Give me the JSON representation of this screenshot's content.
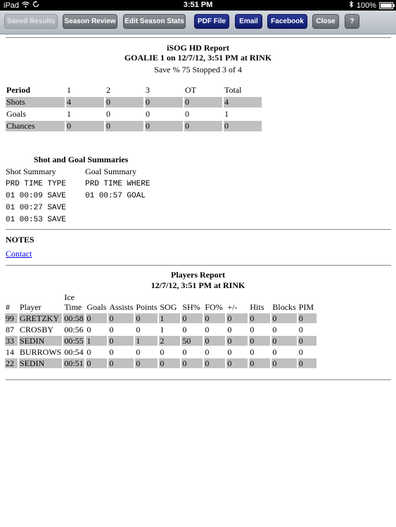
{
  "status_bar": {
    "device": "iPad",
    "time": "3:51 PM",
    "battery": "100%"
  },
  "toolbar": {
    "saved_results": "Saved Results",
    "season_review": "Season Review",
    "edit_season_stats": "Edit Season Stats",
    "pdf_file": "PDF File",
    "email": "Email",
    "facebook": "Facebook",
    "close": "Close",
    "help": "?"
  },
  "report": {
    "title": "iSOG HD Report",
    "subtitle": "GOALIE 1 on 12/7/12, 3:51 PM at RINK",
    "save_line": "Save % 75 Stopped 3 of 4",
    "period_table": {
      "headers": [
        "Period",
        "1",
        "2",
        "3",
        "OT",
        "Total"
      ],
      "rows": [
        [
          "Shots",
          "4",
          "0",
          "0",
          "0",
          "4"
        ],
        [
          "Goals",
          "1",
          "0",
          "0",
          "0",
          "1"
        ],
        [
          "Chances",
          "0",
          "0",
          "0",
          "0",
          "0"
        ]
      ]
    },
    "summaries_title": "Shot and Goal Summaries",
    "shot_summary": {
      "label": "Shot Summary",
      "header": "PRD TIME TYPE",
      "lines": [
        "01 00:09 SAVE",
        "01 00:27 SAVE",
        "01 00:53 SAVE"
      ]
    },
    "goal_summary": {
      "label": "Goal Summary",
      "header": "PRD TIME WHERE",
      "lines": [
        "01 00:57 GOAL"
      ]
    },
    "notes_title": "NOTES",
    "contact_link": "Contact"
  },
  "players_report": {
    "title": "Players Report",
    "subtitle": "12/7/12, 3:51 PM at RINK",
    "headers": [
      "#",
      "Player",
      "Ice Time",
      "Goals",
      "Assists",
      "Points",
      "SOG",
      "SH%",
      "FO%",
      "+/-",
      "Hits",
      "Blocks",
      "PIM"
    ],
    "rows": [
      [
        "99",
        "GRETZKY",
        "00:58",
        "0",
        "0",
        "0",
        "1",
        "0",
        "0",
        "0",
        "0",
        "0",
        "0"
      ],
      [
        "87",
        "CROSBY",
        "00:56",
        "0",
        "0",
        "0",
        "1",
        "0",
        "0",
        "0",
        "0",
        "0",
        "0"
      ],
      [
        "33",
        "SEDIN",
        "00:55",
        "1",
        "0",
        "1",
        "2",
        "50",
        "0",
        "0",
        "0",
        "0",
        "0"
      ],
      [
        "14",
        "BURROWS",
        "00:54",
        "0",
        "0",
        "0",
        "0",
        "0",
        "0",
        "0",
        "0",
        "0",
        "0"
      ],
      [
        "22",
        "SEDIN",
        "00:51",
        "0",
        "0",
        "0",
        "0",
        "0",
        "0",
        "0",
        "0",
        "0",
        "0"
      ]
    ]
  }
}
